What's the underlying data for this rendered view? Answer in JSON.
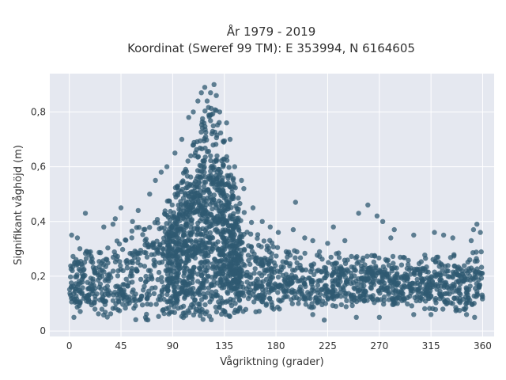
{
  "chart_data": {
    "type": "scatter",
    "title": [
      "År 1979 - 2019",
      "Koordinat (Sweref 99 TM): E 353994, N 6164605"
    ],
    "xlabel": "Vågriktning (grader)",
    "ylabel": "Signifikant våghöjd (m)",
    "xlim": [
      -17,
      370
    ],
    "ylim": [
      -0.02,
      0.94
    ],
    "xticks": [
      0,
      45,
      90,
      135,
      180,
      225,
      270,
      315,
      360
    ],
    "xtick_labels": [
      "0",
      "45",
      "90",
      "135",
      "180",
      "225",
      "270",
      "315",
      "360"
    ],
    "yticks": [
      0,
      0.2,
      0.4,
      0.6,
      0.8
    ],
    "ytick_labels": [
      "0",
      "0,2",
      "0,4",
      "0,6",
      "0,8"
    ],
    "grid": true,
    "legend": "none",
    "background": "#e5e8f0",
    "marker_color": "#2f5a72",
    "envelope": {
      "x": [
        0,
        10,
        20,
        30,
        45,
        60,
        75,
        90,
        100,
        110,
        115,
        120,
        125,
        130,
        140,
        150,
        165,
        180,
        200,
        225,
        250,
        270,
        290,
        315,
        340,
        360
      ],
      "low": [
        0.07,
        0.06,
        0.05,
        0.05,
        0.04,
        0.04,
        0.04,
        0.04,
        0.04,
        0.04,
        0.04,
        0.04,
        0.04,
        0.05,
        0.05,
        0.06,
        0.07,
        0.08,
        0.08,
        0.08,
        0.08,
        0.08,
        0.08,
        0.08,
        0.07,
        0.07
      ],
      "high": [
        0.3,
        0.32,
        0.33,
        0.34,
        0.36,
        0.38,
        0.42,
        0.5,
        0.6,
        0.72,
        0.78,
        0.82,
        0.84,
        0.8,
        0.6,
        0.45,
        0.36,
        0.32,
        0.3,
        0.29,
        0.28,
        0.28,
        0.28,
        0.28,
        0.28,
        0.3
      ]
    },
    "outliers": [
      [
        14,
        0.43
      ],
      [
        2,
        0.35
      ],
      [
        30,
        0.38
      ],
      [
        40,
        0.41
      ],
      [
        45,
        0.45
      ],
      [
        38,
        0.39
      ],
      [
        55,
        0.4
      ],
      [
        60,
        0.44
      ],
      [
        70,
        0.5
      ],
      [
        75,
        0.55
      ],
      [
        80,
        0.58
      ],
      [
        85,
        0.6
      ],
      [
        92,
        0.65
      ],
      [
        98,
        0.7
      ],
      [
        104,
        0.78
      ],
      [
        108,
        0.8
      ],
      [
        112,
        0.84
      ],
      [
        115,
        0.87
      ],
      [
        118,
        0.89
      ],
      [
        120,
        0.84
      ],
      [
        123,
        0.87
      ],
      [
        126,
        0.9
      ],
      [
        128,
        0.86
      ],
      [
        131,
        0.8
      ],
      [
        137,
        0.76
      ],
      [
        140,
        0.7
      ],
      [
        144,
        0.6
      ],
      [
        150,
        0.55
      ],
      [
        152,
        0.52
      ],
      [
        160,
        0.45
      ],
      [
        168,
        0.4
      ],
      [
        175,
        0.38
      ],
      [
        182,
        0.36
      ],
      [
        195,
        0.37
      ],
      [
        197,
        0.47
      ],
      [
        205,
        0.34
      ],
      [
        212,
        0.33
      ],
      [
        225,
        0.32
      ],
      [
        240,
        0.33
      ],
      [
        252,
        0.43
      ],
      [
        260,
        0.46
      ],
      [
        268,
        0.42
      ],
      [
        273,
        0.4
      ],
      [
        283,
        0.37
      ],
      [
        300,
        0.35
      ],
      [
        318,
        0.36
      ],
      [
        326,
        0.35
      ],
      [
        334,
        0.34
      ],
      [
        350,
        0.33
      ],
      [
        352,
        0.37
      ],
      [
        355,
        0.39
      ],
      [
        358,
        0.36
      ],
      [
        280,
        0.34
      ],
      [
        230,
        0.38
      ],
      [
        7,
        0.34
      ],
      [
        222,
        0.04
      ],
      [
        212,
        0.06
      ],
      [
        250,
        0.05
      ],
      [
        270,
        0.05
      ],
      [
        300,
        0.06
      ],
      [
        315,
        0.06
      ],
      [
        353,
        0.05
      ],
      [
        346,
        0.06
      ],
      [
        4,
        0.05
      ]
    ]
  }
}
